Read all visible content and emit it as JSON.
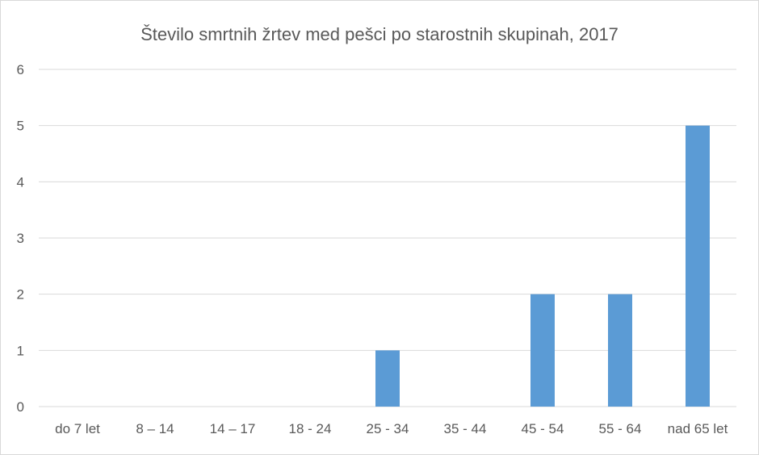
{
  "chart_data": {
    "type": "bar",
    "title": "Število smrtnih žrtev med pešci po starostnih skupinah, 2017",
    "xlabel": "",
    "ylabel": "",
    "categories": [
      "do 7 let",
      "8 – 14",
      "14 – 17",
      "18 - 24",
      "25 - 34",
      "35 - 44",
      "45 - 54",
      "55 - 64",
      "nad 65 let"
    ],
    "values": [
      0,
      0,
      0,
      0,
      1,
      0,
      2,
      2,
      5
    ],
    "ylim": [
      0,
      6
    ],
    "yticks": [
      "0",
      "1",
      "2",
      "3",
      "4",
      "5",
      "6"
    ],
    "grid": true,
    "legend": "none",
    "bar_color": "#5b9bd5",
    "grid_color": "#d9d9d9",
    "text_color": "#595959"
  }
}
